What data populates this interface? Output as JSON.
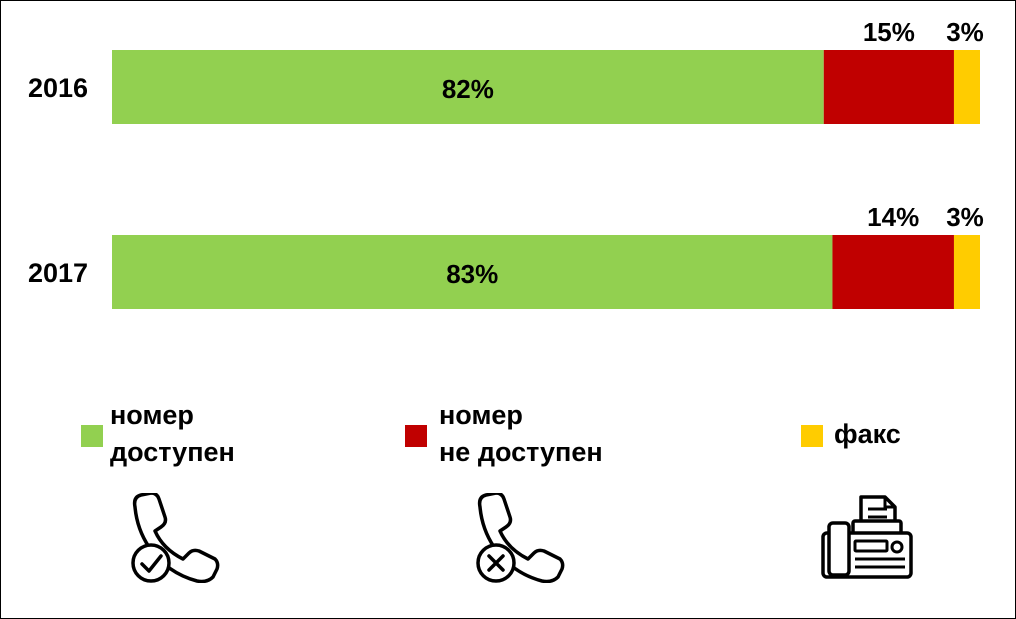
{
  "chart_data": {
    "type": "bar",
    "orientation": "horizontal",
    "stacked": true,
    "categories": [
      "2016",
      "2017"
    ],
    "series": [
      {
        "name": "номер доступен",
        "values": [
          82,
          83
        ],
        "labels": [
          "82%",
          "83%"
        ],
        "color": "#92d050"
      },
      {
        "name": "номер не доступен",
        "values": [
          15,
          14
        ],
        "labels": [
          "15%",
          "14%"
        ],
        "color": "#c00000"
      },
      {
        "name": "факс",
        "values": [
          3,
          3
        ],
        "labels": [
          "3%",
          "3%"
        ],
        "color": "#ffcc00"
      }
    ],
    "xlim": [
      0,
      100
    ],
    "grid": false,
    "legend_position": "bottom"
  },
  "legend": [
    {
      "lines": [
        "номер",
        "доступен"
      ],
      "color": "#92d050",
      "icon": "phone-check-icon"
    },
    {
      "lines": [
        "номер",
        "не доступен"
      ],
      "color": "#c00000",
      "icon": "phone-cross-icon"
    },
    {
      "lines": [
        "факс"
      ],
      "color": "#ffcc00",
      "icon": "fax-icon"
    }
  ]
}
